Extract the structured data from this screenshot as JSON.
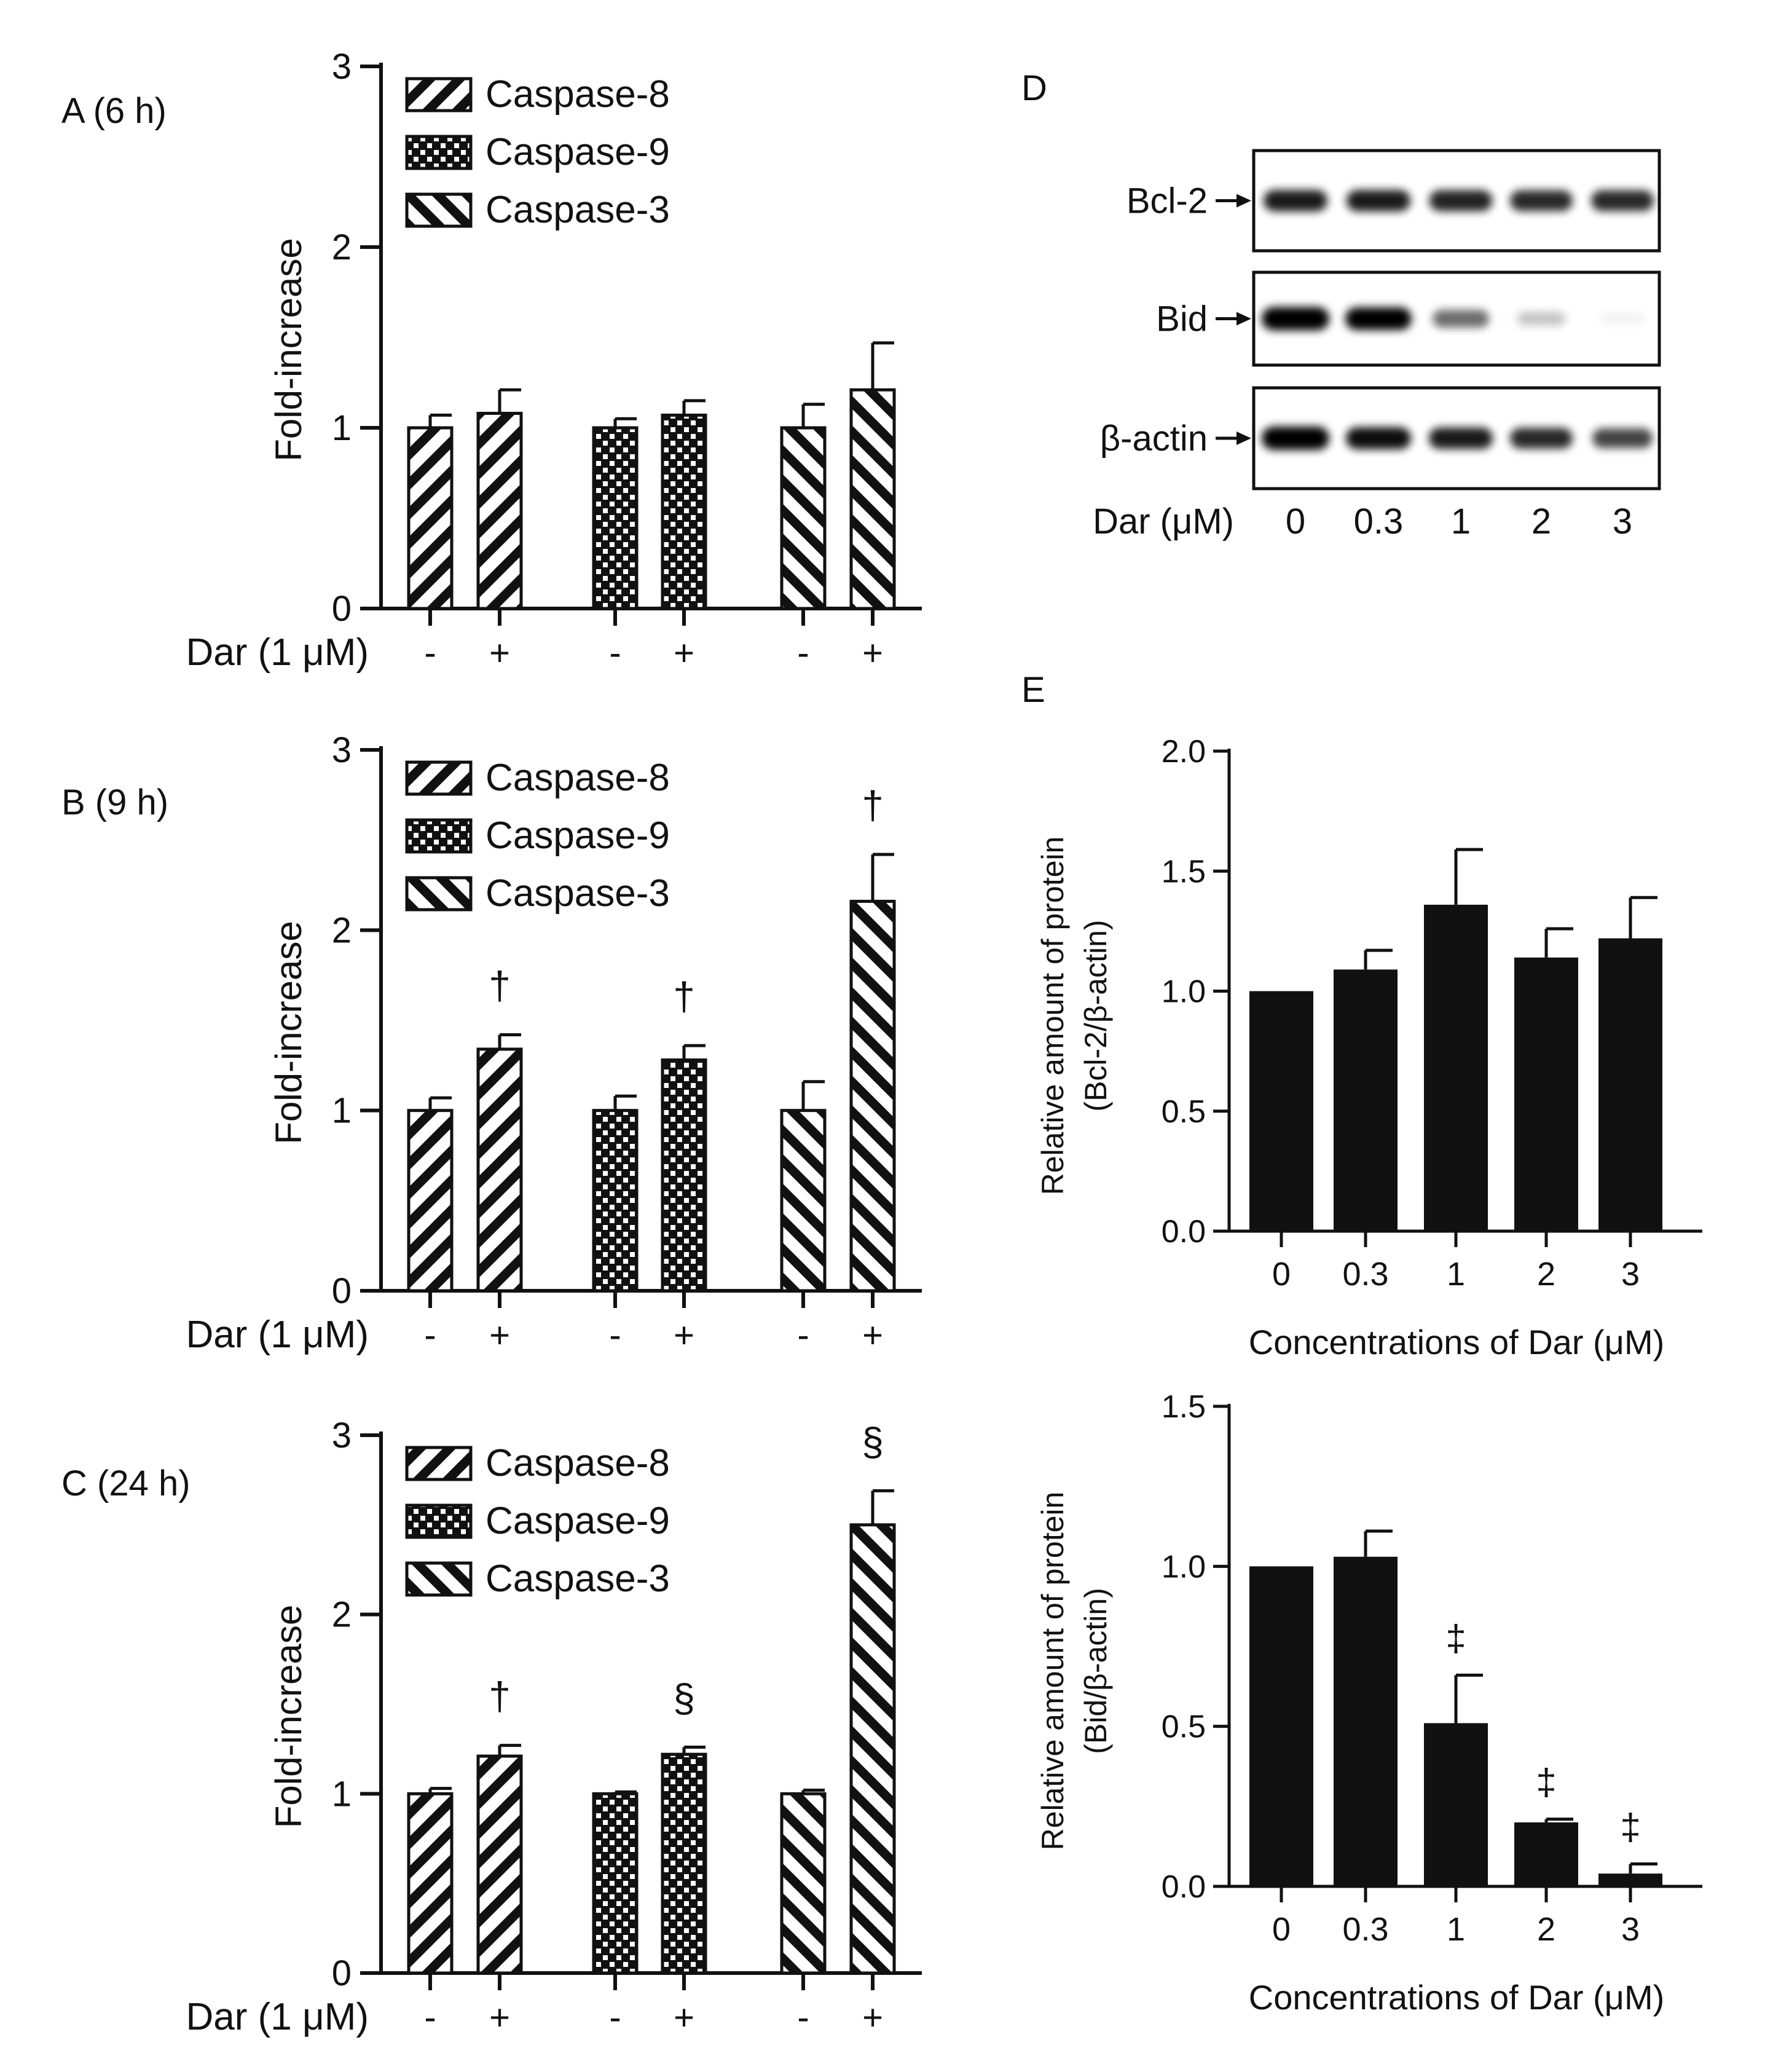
{
  "figure": {
    "panel_d": {
      "label": "D",
      "rows": [
        "Bcl-2",
        "Bid",
        "β-actin"
      ],
      "dose_label": "Dar (μM)",
      "doses": [
        "0",
        "0.3",
        "1",
        "2",
        "3"
      ],
      "band_intensity": {
        "Bcl-2": [
          0.85,
          0.85,
          0.82,
          0.8,
          0.8
        ],
        "Bid": [
          1.0,
          0.95,
          0.55,
          0.22,
          0.05
        ],
        "β-actin": [
          1.0,
          0.9,
          0.85,
          0.8,
          0.7
        ]
      }
    }
  },
  "chart_data": [
    {
      "id": "A",
      "panel_label": "A (6 h)",
      "type": "bar",
      "ylabel": "Fold-increase",
      "ylim": [
        0,
        3
      ],
      "yticks": [
        "0",
        "1",
        "2",
        "3"
      ],
      "xlabel": "Dar (1 μM)",
      "xticks": [
        "-",
        "+",
        "-",
        "+",
        "-",
        "+"
      ],
      "legend": [
        "Caspase-8",
        "Caspase-9",
        "Caspase-3"
      ],
      "series": [
        {
          "name": "Caspase-8",
          "values": [
            1.0,
            1.08
          ],
          "errors": [
            0.07,
            0.13
          ],
          "annotations": [
            "",
            ""
          ]
        },
        {
          "name": "Caspase-9",
          "values": [
            1.0,
            1.07
          ],
          "errors": [
            0.05,
            0.08
          ],
          "annotations": [
            "",
            ""
          ]
        },
        {
          "name": "Caspase-3",
          "values": [
            1.0,
            1.21
          ],
          "errors": [
            0.13,
            0.26
          ],
          "annotations": [
            "",
            ""
          ]
        }
      ]
    },
    {
      "id": "B",
      "panel_label": "B (9 h)",
      "type": "bar",
      "ylabel": "Fold-increase",
      "ylim": [
        0,
        3
      ],
      "yticks": [
        "0",
        "1",
        "2",
        "3"
      ],
      "xlabel": "Dar (1 μM)",
      "xticks": [
        "-",
        "+",
        "-",
        "+",
        "-",
        "+"
      ],
      "legend": [
        "Caspase-8",
        "Caspase-9",
        "Caspase-3"
      ],
      "series": [
        {
          "name": "Caspase-8",
          "values": [
            1.0,
            1.34
          ],
          "errors": [
            0.07,
            0.08
          ],
          "annotations": [
            "",
            "†"
          ]
        },
        {
          "name": "Caspase-9",
          "values": [
            1.0,
            1.28
          ],
          "errors": [
            0.08,
            0.08
          ],
          "annotations": [
            "",
            "†"
          ]
        },
        {
          "name": "Caspase-3",
          "values": [
            1.0,
            2.16
          ],
          "errors": [
            0.16,
            0.26
          ],
          "annotations": [
            "",
            "†"
          ]
        }
      ]
    },
    {
      "id": "C",
      "panel_label": "C (24 h)",
      "type": "bar",
      "ylabel": "Fold-increase",
      "ylim": [
        0,
        3
      ],
      "yticks": [
        "0",
        "1",
        "2",
        "3"
      ],
      "xlabel": "Dar (1 μM)",
      "xticks": [
        "-",
        "+",
        "-",
        "+",
        "-",
        "+"
      ],
      "legend": [
        "Caspase-8",
        "Caspase-9",
        "Caspase-3"
      ],
      "series": [
        {
          "name": "Caspase-8",
          "values": [
            1.0,
            1.21
          ],
          "errors": [
            0.03,
            0.06
          ],
          "annotations": [
            "",
            "†"
          ]
        },
        {
          "name": "Caspase-9",
          "values": [
            1.0,
            1.22
          ],
          "errors": [
            0.01,
            0.04
          ],
          "annotations": [
            "",
            "§"
          ]
        },
        {
          "name": "Caspase-3",
          "values": [
            1.0,
            2.5
          ],
          "errors": [
            0.02,
            0.19
          ],
          "annotations": [
            "",
            "§"
          ]
        }
      ]
    },
    {
      "id": "E1",
      "panel_label": "E",
      "type": "bar",
      "ylabel": [
        "Relative amount of protein",
        "(Bcl-2/β-actin)"
      ],
      "ylim": [
        0,
        2.0
      ],
      "yticks": [
        "0.0",
        "0.5",
        "1.0",
        "1.5",
        "2.0"
      ],
      "xlabel": "Concentrations of Dar (μM)",
      "categories": [
        "0",
        "0.3",
        "1",
        "2",
        "3"
      ],
      "values": [
        1.0,
        1.09,
        1.36,
        1.14,
        1.22
      ],
      "errors": [
        0,
        0.08,
        0.23,
        0.12,
        0.17
      ],
      "annotations": [
        "",
        "",
        "",
        "",
        ""
      ]
    },
    {
      "id": "E2",
      "panel_label": "",
      "type": "bar",
      "ylabel": [
        "Relative amount of protein",
        "(Bid/β-actin)"
      ],
      "ylim": [
        0,
        1.5
      ],
      "yticks": [
        "0.0",
        "0.5",
        "1.0",
        "1.5"
      ],
      "xlabel": "Concentrations of Dar (μM)",
      "categories": [
        "0",
        "0.3",
        "1",
        "2",
        "3"
      ],
      "values": [
        1.0,
        1.03,
        0.51,
        0.2,
        0.04
      ],
      "errors": [
        0,
        0.08,
        0.15,
        0.01,
        0.03
      ],
      "annotations": [
        "",
        "",
        "‡",
        "‡",
        "‡"
      ]
    }
  ]
}
